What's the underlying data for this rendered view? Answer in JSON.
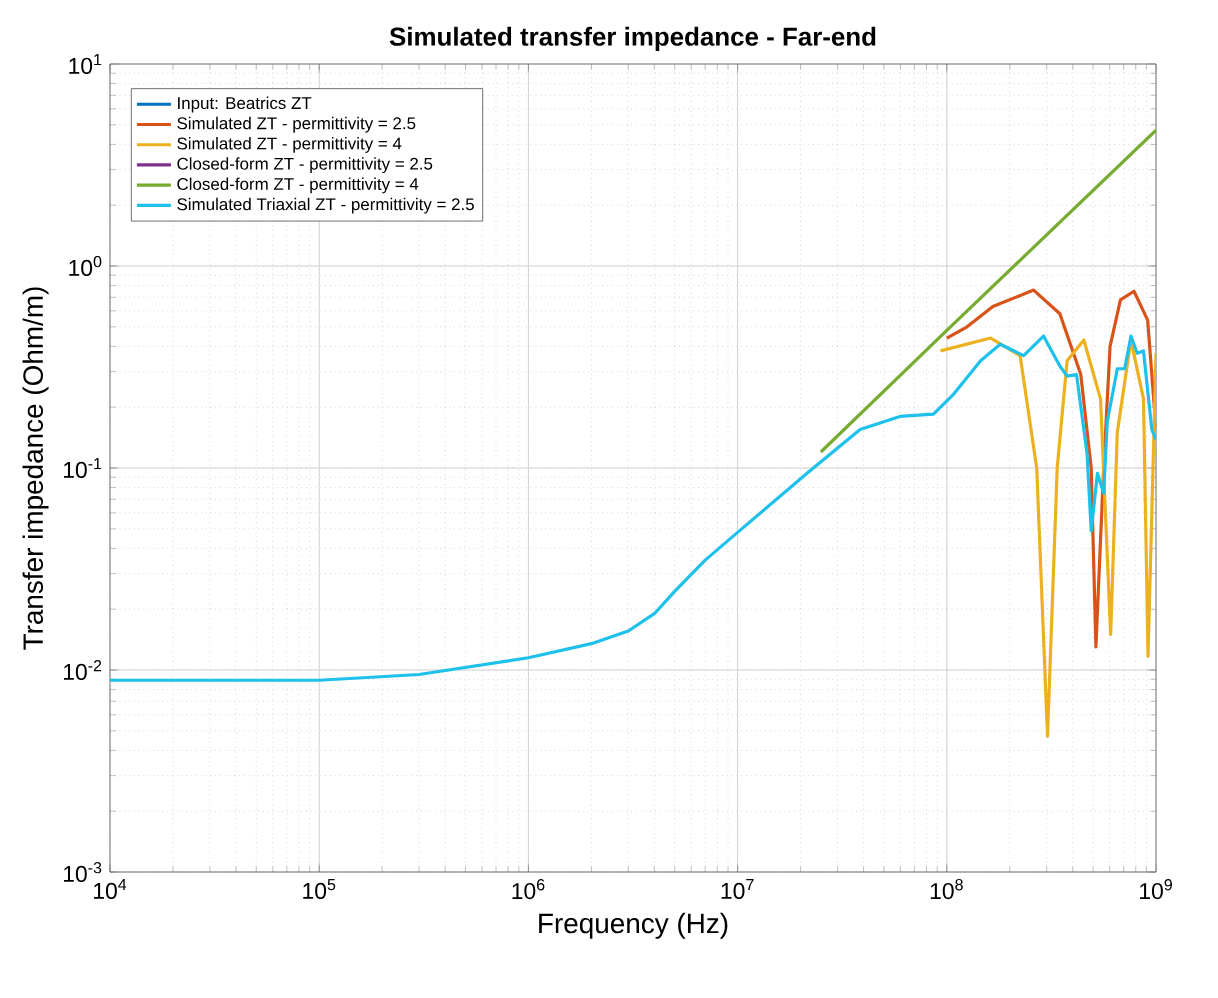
{
  "chart_data": {
    "type": "line",
    "title": "Simulated transfer impedance - Far-end",
    "xlabel": "Frequency (Hz)",
    "ylabel": "Transfer impedance (Ohm/m)",
    "log": "xy",
    "grid": true,
    "legend": "top left",
    "marker": "none",
    "line_style": "solid",
    "xlim": [
      10000,
      1000000000
    ],
    "ylim": [
      0.001,
      10
    ],
    "xticks": [
      {
        "value": 10000,
        "label": "10$^{4}$"
      },
      {
        "value": 100000,
        "label": "10$^{5}$"
      },
      {
        "value": 1000000,
        "label": "10$^{6}$"
      },
      {
        "value": 10000000,
        "label": "10$^{7}$"
      },
      {
        "value": 100000000,
        "label": "10$^{8}$"
      },
      {
        "value": 1000000000,
        "label": "10$^{9}$"
      }
    ],
    "yticks": [
      {
        "value": 0.001,
        "label": "10$^{-3}$"
      },
      {
        "value": 0.01,
        "label": "10$^{-2}$"
      },
      {
        "value": 0.1,
        "label": "10$^{-1}$"
      },
      {
        "value": 1,
        "label": "10$^{0}$"
      },
      {
        "value": 10,
        "label": "10$^{1}$"
      }
    ],
    "series": [
      {
        "name": "Input: Beatrics ZT",
        "color": "#0072bd"
      },
      {
        "name": "Simulated ZT - permittivity = 2.5",
        "color": "#d95319",
        "x": [
          100000000,
          125000000,
          166000000,
          260000000,
          347000000,
          437000000,
          490000000,
          516000000,
          562000000,
          603000000,
          676000000,
          785000000,
          912000000,
          1000000000
        ],
        "values": [
          0.44,
          0.5,
          0.63,
          0.76,
          0.58,
          0.29,
          0.1,
          0.013,
          0.1,
          0.4,
          0.68,
          0.75,
          0.54,
          0.155
        ]
      },
      {
        "name": "Simulated ZT - permittivity = 4",
        "color": "#edb120",
        "x": [
          93300000,
          162000000,
          224000000,
          269000000,
          303000000,
          337000000,
          376000000,
          452000000,
          543000000,
          607000000,
          653000000,
          759000000,
          871000000,
          916000000,
          1000000000
        ],
        "values": [
          0.38,
          0.44,
          0.36,
          0.1,
          0.0047,
          0.1,
          0.34,
          0.43,
          0.22,
          0.015,
          0.15,
          0.43,
          0.22,
          0.0117,
          0.37
        ]
      },
      {
        "name": "Closed-form ZT - permittivity = 2.5",
        "color": "#7e2f8e"
      },
      {
        "name": "Closed-form ZT - permittivity = 4",
        "color": "#77ac30",
        "x": [
          25000000,
          100000000,
          1000000000
        ],
        "values": [
          0.12,
          0.48,
          4.7
        ]
      },
      {
        "name": "Simulated Triaxial ZT - permittivity = 2.5",
        "color": "#1ec0ec",
        "x": [
          10000,
          100000,
          300000,
          1000000,
          2000000,
          3000000,
          4000000,
          5000000,
          7000000,
          10000000,
          21400000,
          38500000,
          59700000,
          86300000,
          107000000,
          145000000,
          180000000,
          233000000,
          290000000,
          347000000,
          376000000,
          417000000,
          468000000,
          490000000,
          525000000,
          562000000,
          585000000,
          653000000,
          708000000,
          759000000,
          813000000,
          871000000,
          955000000,
          1000000000
        ],
        "values": [
          0.0089,
          0.0089,
          0.0095,
          0.0115,
          0.0135,
          0.0156,
          0.019,
          0.0245,
          0.035,
          0.048,
          0.094,
          0.155,
          0.18,
          0.185,
          0.23,
          0.34,
          0.41,
          0.36,
          0.45,
          0.32,
          0.285,
          0.29,
          0.118,
          0.049,
          0.094,
          0.075,
          0.17,
          0.31,
          0.31,
          0.45,
          0.37,
          0.38,
          0.155,
          0.138
        ]
      }
    ]
  }
}
